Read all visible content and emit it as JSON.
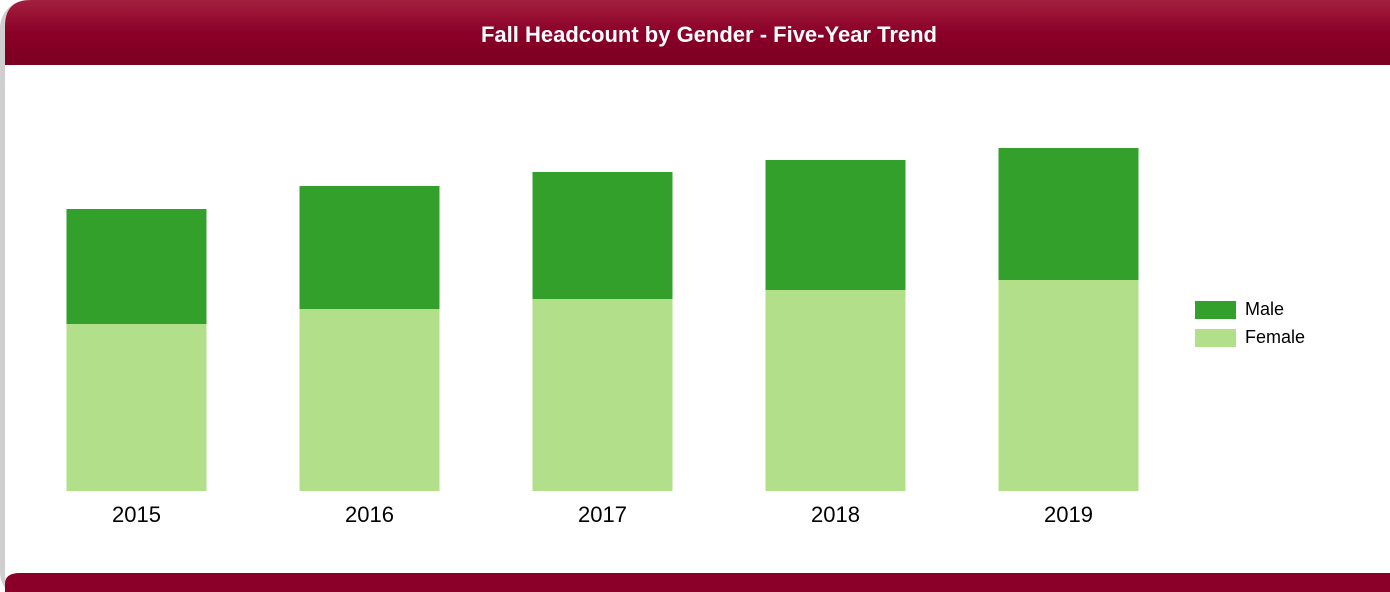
{
  "chart_data": {
    "type": "bar",
    "stacked": true,
    "title": "Fall Headcount by Gender - Five-Year Trend",
    "categories": [
      "2015",
      "2016",
      "2017",
      "2018",
      "2019"
    ],
    "series": [
      {
        "name": "Male",
        "color": "#33a02c",
        "values": [
          115,
          123,
          127,
          130,
          132
        ]
      },
      {
        "name": "Female",
        "color": "#b2df8a",
        "values": [
          167,
          182,
          192,
          201,
          211
        ]
      }
    ],
    "ylim": [
      0,
      400
    ],
    "legend": "right"
  }
}
